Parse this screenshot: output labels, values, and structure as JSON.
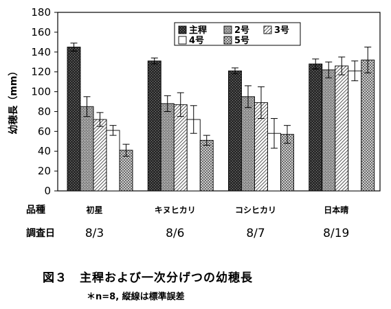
{
  "chart_data": {
    "type": "bar",
    "ylabel": "幼穂長（mm）",
    "ylim": [
      0,
      180
    ],
    "yticks": [
      0,
      20,
      40,
      60,
      80,
      100,
      120,
      140,
      160,
      180
    ],
    "grid": false,
    "legend_placement": "top-center",
    "row_labels": {
      "variety": "品種",
      "date": "調査日"
    },
    "categories": [
      "初星",
      "キヌヒカリ",
      "コシヒカリ",
      "日本晴"
    ],
    "dates": [
      "8/3",
      "8/6",
      "8/7",
      "8/19"
    ],
    "series": [
      {
        "name": "主稈",
        "values": [
          145,
          131,
          121,
          128
        ],
        "errors": [
          4,
          3,
          3,
          5
        ]
      },
      {
        "name": "2号",
        "values": [
          85,
          88,
          95,
          122
        ],
        "errors": [
          10,
          8,
          11,
          8
        ]
      },
      {
        "name": "3号",
        "values": [
          72,
          87,
          89,
          126
        ],
        "errors": [
          7,
          12,
          16,
          9
        ]
      },
      {
        "name": "4号",
        "values": [
          61,
          72,
          58,
          121
        ],
        "errors": [
          5,
          14,
          15,
          10
        ]
      },
      {
        "name": "5号",
        "values": [
          41,
          51,
          57,
          132
        ],
        "errors": [
          6,
          5,
          9,
          13
        ]
      }
    ]
  },
  "caption": {
    "title": "図３　主稈および一次分げつの幼穂長",
    "note": "＊n=8,  縦線は標準誤差"
  }
}
